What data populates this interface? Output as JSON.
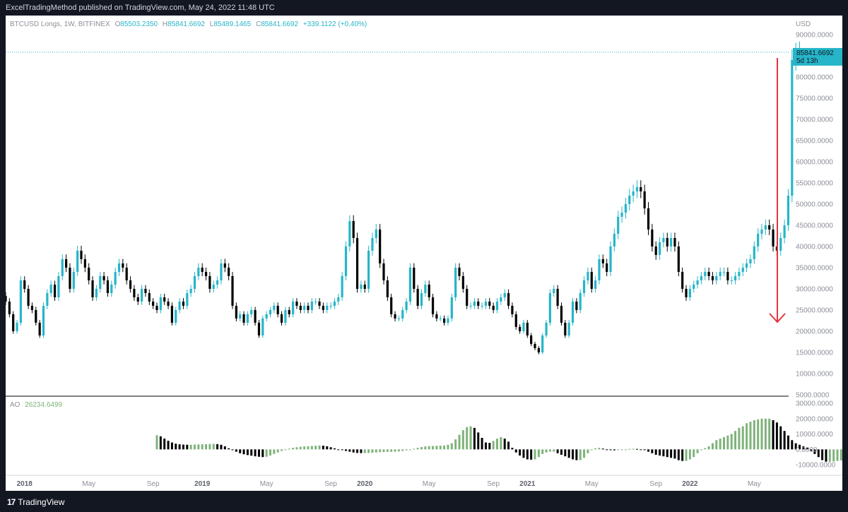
{
  "header": {
    "published": "ExcelTradingMethod published on TradingView.com, May 24, 2022 11:48 UTC"
  },
  "footer": {
    "brand": "TradingView",
    "logo_mark": "17"
  },
  "legend": {
    "symbol": "BTCUSD Longs, 1W, BITFINEX",
    "o_label": "O",
    "o": "85503.2350",
    "h_label": "H",
    "h": "85841.6692",
    "l_label": "L",
    "l": "85489.1465",
    "c_label": "C",
    "c": "85841.6692",
    "change": "+339.1122 (+0.40%)"
  },
  "price_axis": {
    "currency": "USD",
    "last_price": "85841.6692",
    "countdown": "5d 13h"
  },
  "ao_panel": {
    "label": "AO",
    "value": "26234.6499"
  },
  "colors": {
    "up": "#26b5c9",
    "down": "#000000",
    "ao_up": "#7fb37a",
    "ao_down": "#000000",
    "arrow": "#e8313f",
    "background": "#131722"
  },
  "chart_data": [
    {
      "type": "candlestick",
      "title": "BTCUSD Longs, 1W, BITFINEX",
      "ylabel": "USD",
      "ylim": [
        5000,
        90000
      ],
      "y_ticks": [
        5000,
        10000,
        15000,
        20000,
        25000,
        30000,
        35000,
        40000,
        45000,
        50000,
        55000,
        60000,
        65000,
        70000,
        75000,
        80000,
        85000,
        90000
      ],
      "x_tick_labels": [
        "2018",
        "May",
        "Sep",
        "2019",
        "May",
        "Sep",
        "2020",
        "May",
        "Sep",
        "2021",
        "May",
        "Sep",
        "2022",
        "May"
      ],
      "close": [
        27000,
        24000,
        20000,
        22000,
        32000,
        30000,
        26000,
        25000,
        22000,
        19000,
        26000,
        29000,
        31000,
        28000,
        33000,
        37000,
        35000,
        30000,
        34000,
        39000,
        37000,
        35000,
        32000,
        28000,
        30000,
        33000,
        32000,
        29000,
        31000,
        34000,
        36000,
        35000,
        32000,
        30000,
        28000,
        27000,
        30000,
        29000,
        27000,
        26000,
        25000,
        28000,
        27000,
        26000,
        22000,
        25000,
        27000,
        26000,
        29000,
        30000,
        33000,
        35000,
        34000,
        33000,
        30000,
        31000,
        32000,
        36000,
        35000,
        33000,
        26000,
        23000,
        24000,
        22000,
        24000,
        25000,
        22000,
        19000,
        23000,
        24000,
        25000,
        26000,
        24000,
        22000,
        25000,
        24000,
        27000,
        26000,
        25000,
        26000,
        25000,
        27000,
        27000,
        26000,
        25000,
        26000,
        26000,
        27000,
        28000,
        33000,
        40000,
        46000,
        42000,
        30000,
        31000,
        30000,
        39000,
        42000,
        44000,
        36000,
        32000,
        28000,
        24000,
        23000,
        23000,
        25000,
        27000,
        35000,
        30000,
        26000,
        29000,
        31000,
        28000,
        24000,
        23000,
        23000,
        22000,
        23000,
        28000,
        35000,
        33000,
        30000,
        26000,
        26000,
        27000,
        26000,
        26000,
        27000,
        26000,
        25000,
        27000,
        28000,
        29000,
        26000,
        24000,
        21000,
        20000,
        22000,
        19000,
        17000,
        16000,
        15000,
        19000,
        22000,
        29000,
        30000,
        26000,
        22000,
        19000,
        22000,
        27000,
        25000,
        29000,
        32000,
        34000,
        30000,
        32000,
        37000,
        36000,
        34000,
        40000,
        43000,
        47000,
        48000,
        50000,
        52000,
        53000,
        54000,
        53000,
        49000,
        44000,
        40000,
        38000,
        41000,
        42000,
        40000,
        42000,
        40000,
        34000,
        30000,
        28000,
        30000,
        31000,
        32000,
        33000,
        34000,
        33000,
        32000,
        33000,
        34000,
        34000,
        32000,
        32000,
        33000,
        34000,
        35000,
        36000,
        37000,
        40000,
        43000,
        44000,
        45000,
        44000,
        40000,
        39000,
        42000,
        45000,
        52000,
        84000,
        85500,
        85842
      ]
    },
    {
      "type": "bar",
      "title": "AO",
      "ylim": [
        -15000,
        30000
      ],
      "y_ticks": [
        -10000,
        0,
        10000,
        20000,
        30000
      ],
      "start_index": 40,
      "values": [
        9200,
        8500,
        7000,
        5600,
        4500,
        3700,
        3300,
        3100,
        3000,
        3000,
        3100,
        3200,
        3300,
        3400,
        3500,
        3600,
        3400,
        3000,
        2000,
        700,
        -500,
        -1500,
        -2500,
        -3200,
        -3700,
        -4100,
        -4500,
        -4800,
        -5000,
        -4800,
        -4000,
        -3000,
        -2000,
        -1000,
        -200,
        500,
        1000,
        1400,
        1700,
        1900,
        2000,
        2200,
        2400,
        2500,
        2400,
        2000,
        1400,
        700,
        0,
        -500,
        -1000,
        -1500,
        -2000,
        -2300,
        -2400,
        -2400,
        -2300,
        -2200,
        -2000,
        -1800,
        -1700,
        -1600,
        -1600,
        -1500,
        -1300,
        -1000,
        -600,
        -200,
        400,
        1000,
        1500,
        1900,
        2100,
        2200,
        2300,
        2400,
        2500,
        3000,
        4000,
        6500,
        9500,
        12500,
        14500,
        15000,
        14000,
        11000,
        7500,
        4500,
        4200,
        5500,
        7000,
        8000,
        7000,
        5000,
        1000,
        -2000,
        -4000,
        -5500,
        -6500,
        -6700,
        -6500,
        -5000,
        -3000,
        -2000,
        -1500,
        -1500,
        -2500,
        -3500,
        -4500,
        -5500,
        -6500,
        -7000,
        -7000,
        -5500,
        -2500,
        -500,
        700,
        1000,
        500,
        -200,
        -500,
        -600,
        -500,
        -300,
        0,
        300,
        400,
        300,
        0,
        -500,
        -1500,
        -2500,
        -3500,
        -4000,
        -4500,
        -5000,
        -5500,
        -6000,
        -7000,
        -7500,
        -7500,
        -6500,
        -5000,
        -2500,
        -500,
        800,
        2000,
        4000,
        6000,
        7000,
        8000,
        9000,
        10000,
        12000,
        14000,
        15000,
        17000,
        18000,
        19000,
        19500,
        20000,
        20000,
        20000,
        19000,
        17500,
        15000,
        12000,
        9000,
        6000,
        4000,
        3000,
        2000,
        1000,
        -1000,
        -3000,
        -5000,
        -7000,
        -8000,
        -8000,
        -7800,
        -7500,
        -7200,
        -7000,
        -6800,
        -6600,
        -6400,
        -6200,
        -6000,
        -5800,
        -5000,
        -3500,
        -1500,
        500,
        3000,
        6000,
        7000,
        7500,
        7200,
        6800,
        6000,
        5500,
        5500,
        6000,
        7000,
        11000,
        18500,
        26235
      ]
    }
  ]
}
